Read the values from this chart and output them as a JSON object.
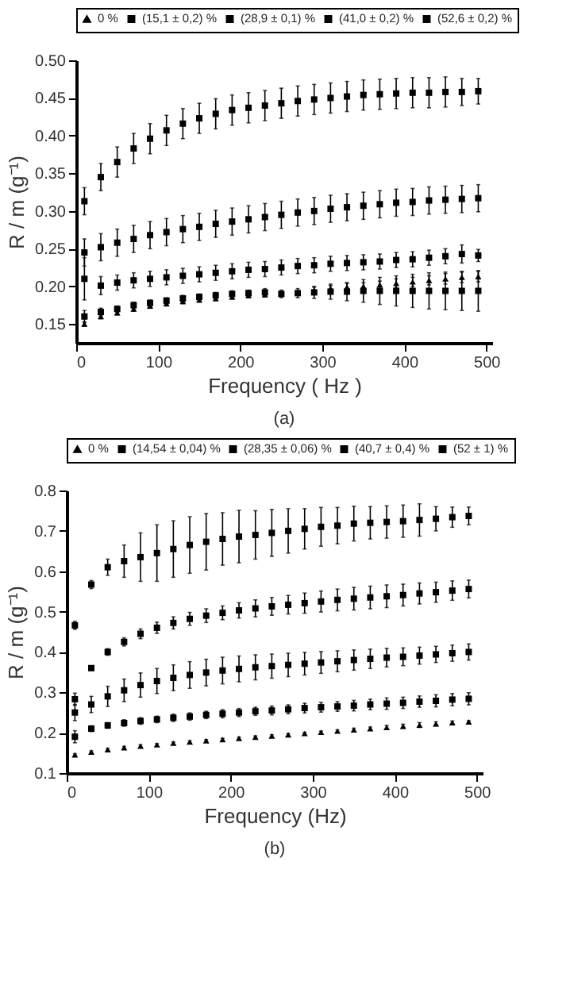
{
  "chart_data": [
    {
      "type": "scatter",
      "xlabel": "Frequency ( Hz )",
      "ylabel": "R / m (g⁻¹)",
      "annotations": [
        "(a)"
      ],
      "legend": "top",
      "grid": false,
      "xlim": [
        0,
        507
      ],
      "xticks": [
        0,
        100,
        200,
        300,
        400,
        500
      ],
      "ylim": [
        0.125,
        0.5
      ],
      "yticks": [
        {
          "value": 0.15,
          "label": "0.15"
        },
        {
          "value": 0.2,
          "label": "0.20"
        },
        {
          "value": 0.25,
          "label": "0.25"
        },
        {
          "value": 0.3,
          "label": "0.30"
        },
        {
          "value": 0.35,
          "label": "0.35"
        },
        {
          "value": 0.4,
          "label": "0.40"
        },
        {
          "value": 0.45,
          "label": "0.45"
        },
        {
          "value": 0.5,
          "label": "0.50"
        }
      ],
      "x": [
        10,
        30,
        50,
        70,
        90,
        110,
        130,
        150,
        170,
        190,
        210,
        230,
        250,
        270,
        290,
        310,
        330,
        350,
        370,
        390,
        410,
        430,
        450,
        470,
        490
      ],
      "series": [
        {
          "name": "0 %",
          "color": "#000000",
          "marker": "triangle",
          "values": [
            0.15,
            0.16,
            0.165,
            0.17,
            0.174,
            0.177,
            0.18,
            0.182,
            0.184,
            0.186,
            0.188,
            0.189,
            null,
            null,
            0.195,
            0.197,
            0.199,
            0.2,
            0.202,
            0.204,
            0.206,
            0.208,
            0.21,
            0.212,
            0.213
          ],
          "errors": [
            0.003,
            0.003,
            0.003,
            0.003,
            0.003,
            0.003,
            0.003,
            0.003,
            0.003,
            0.003,
            0.003,
            0.003,
            null,
            null,
            0.004,
            0.004,
            0.005,
            0.005,
            0.005,
            0.006,
            0.006,
            0.006,
            0.007,
            0.007,
            0.007
          ]
        },
        {
          "name": "(15,1 ± 0,2) %",
          "color": "#000000",
          "marker": "square",
          "values": [
            0.16,
            0.166,
            0.17,
            0.175,
            0.178,
            0.181,
            0.184,
            0.186,
            0.188,
            0.19,
            0.191,
            0.192,
            0.19,
            0.191,
            0.192,
            0.193,
            0.193,
            0.194,
            0.194,
            0.194,
            0.194,
            0.194,
            0.194,
            0.194,
            0.194
          ],
          "errors": [
            0.008,
            0.005,
            0.004,
            0.004,
            0.004,
            0.004,
            0.004,
            0.004,
            0.004,
            0.004,
            0.004,
            0.005,
            0.005,
            0.006,
            0.008,
            0.01,
            0.012,
            0.015,
            0.018,
            0.02,
            0.022,
            0.024,
            0.025,
            0.026,
            0.027
          ]
        },
        {
          "name": "(28,9 ± 0,1) %",
          "color": "#000000",
          "marker": "square",
          "values": [
            0.21,
            0.201,
            0.205,
            0.208,
            0.21,
            0.212,
            0.214,
            0.216,
            0.218,
            0.22,
            0.222,
            0.223,
            0.225,
            0.227,
            0.228,
            0.23,
            0.231,
            0.232,
            0.233,
            0.235,
            0.236,
            0.238,
            0.24,
            0.243,
            0.241
          ],
          "errors": [
            0.028,
            0.012,
            0.01,
            0.01,
            0.01,
            0.01,
            0.01,
            0.01,
            0.01,
            0.01,
            0.01,
            0.01,
            0.01,
            0.01,
            0.01,
            0.01,
            0.01,
            0.01,
            0.01,
            0.01,
            0.01,
            0.01,
            0.01,
            0.012,
            0.008
          ]
        },
        {
          "name": "(41,0 ± 0,2) %",
          "color": "#000000",
          "marker": "square",
          "values": [
            0.245,
            0.252,
            0.258,
            0.263,
            0.268,
            0.272,
            0.276,
            0.279,
            0.283,
            0.286,
            0.289,
            0.292,
            0.295,
            0.298,
            0.3,
            0.303,
            0.305,
            0.307,
            0.309,
            0.311,
            0.312,
            0.314,
            0.315,
            0.316,
            0.317
          ],
          "errors": [
            0.018,
            0.018,
            0.018,
            0.018,
            0.018,
            0.018,
            0.018,
            0.018,
            0.018,
            0.018,
            0.018,
            0.018,
            0.018,
            0.018,
            0.018,
            0.018,
            0.018,
            0.018,
            0.018,
            0.018,
            0.018,
            0.018,
            0.018,
            0.018,
            0.018
          ]
        },
        {
          "name": "(52,6 ± 0,2) %",
          "color": "#000000",
          "marker": "square",
          "values": [
            0.313,
            0.345,
            0.365,
            0.383,
            0.396,
            0.407,
            0.416,
            0.423,
            0.429,
            0.434,
            0.437,
            0.44,
            0.443,
            0.446,
            0.448,
            0.45,
            0.452,
            0.454,
            0.455,
            0.456,
            0.457,
            0.457,
            0.458,
            0.458,
            0.459
          ],
          "errors": [
            0.018,
            0.018,
            0.02,
            0.02,
            0.02,
            0.02,
            0.02,
            0.02,
            0.02,
            0.02,
            0.02,
            0.02,
            0.02,
            0.02,
            0.02,
            0.02,
            0.02,
            0.02,
            0.02,
            0.02,
            0.02,
            0.02,
            0.02,
            0.018,
            0.017
          ]
        }
      ]
    },
    {
      "type": "scatter",
      "xlabel": "Frequency (Hz)",
      "ylabel": "R / m (g⁻¹)",
      "annotations": [
        "(b)"
      ],
      "legend": "top",
      "grid": false,
      "xlim": [
        0,
        507
      ],
      "xticks": [
        0,
        100,
        200,
        300,
        400,
        500
      ],
      "ylim": [
        0.1,
        0.8
      ],
      "yticks": [
        0.1,
        0.2,
        0.3,
        0.4,
        0.5,
        0.6,
        0.7,
        0.8
      ],
      "x": [
        10,
        30,
        50,
        70,
        90,
        110,
        130,
        150,
        170,
        190,
        210,
        230,
        250,
        270,
        290,
        310,
        330,
        350,
        370,
        390,
        410,
        430,
        450,
        470,
        490
      ],
      "series": [
        {
          "name": "0 %",
          "color": "#000000",
          "marker": "triangle",
          "values": [
            0.145,
            0.152,
            0.158,
            0.163,
            0.167,
            0.17,
            0.174,
            0.177,
            0.18,
            0.183,
            0.186,
            0.189,
            0.192,
            0.195,
            0.198,
            0.201,
            0.204,
            0.207,
            0.21,
            0.213,
            0.216,
            0.219,
            0.222,
            0.225,
            0.227
          ],
          "errors": [
            0.003,
            0.003,
            0.003,
            0.003,
            0.003,
            0.003,
            0.003,
            0.003,
            0.003,
            0.003,
            0.003,
            0.003,
            0.003,
            0.003,
            0.003,
            0.003,
            0.003,
            0.004,
            0.004,
            0.005,
            0.005,
            0.006,
            0.005,
            0.004,
            0.003
          ]
        },
        {
          "name": "(14,54 ± 0,04) %",
          "color": "#000000",
          "marker": "square",
          "values": [
            0.19,
            0.21,
            0.218,
            0.224,
            0.229,
            0.233,
            0.237,
            0.24,
            0.244,
            0.247,
            0.25,
            0.253,
            0.255,
            0.258,
            0.261,
            0.263,
            0.265,
            0.267,
            0.27,
            0.272,
            0.274,
            0.277,
            0.279,
            0.282,
            0.284
          ],
          "errors": [
            0.015,
            0.007,
            0.007,
            0.008,
            0.008,
            0.008,
            0.009,
            0.009,
            0.009,
            0.01,
            0.01,
            0.01,
            0.011,
            0.011,
            0.012,
            0.012,
            0.012,
            0.013,
            0.013,
            0.014,
            0.014,
            0.014,
            0.015,
            0.015,
            0.015
          ]
        },
        {
          "name": "(28,35 ± 0,06) %",
          "color": "#000000",
          "marker": "square",
          "values": [
            0.25,
            0.27,
            0.29,
            0.305,
            0.318,
            0.328,
            0.336,
            0.343,
            0.349,
            0.354,
            0.358,
            0.362,
            0.365,
            0.368,
            0.371,
            0.374,
            0.377,
            0.38,
            0.383,
            0.386,
            0.388,
            0.391,
            0.394,
            0.397,
            0.4
          ],
          "errors": [
            0.02,
            0.02,
            0.025,
            0.028,
            0.03,
            0.031,
            0.032,
            0.033,
            0.033,
            0.033,
            0.032,
            0.031,
            0.03,
            0.029,
            0.028,
            0.027,
            0.026,
            0.025,
            0.024,
            0.023,
            0.022,
            0.021,
            0.02,
            0.02,
            0.02
          ]
        },
        {
          "name": "(40,7 ± 0,4) %",
          "color": "#000000",
          "marker": "square",
          "values": [
            0.283,
            0.36,
            0.4,
            0.425,
            0.445,
            0.46,
            0.472,
            0.482,
            0.49,
            0.497,
            0.503,
            0.508,
            0.513,
            0.517,
            0.521,
            0.525,
            0.529,
            0.532,
            0.535,
            0.538,
            0.541,
            0.545,
            0.548,
            0.552,
            0.556
          ],
          "errors": [
            0.015,
            0.005,
            0.008,
            0.01,
            0.012,
            0.014,
            0.015,
            0.016,
            0.017,
            0.017,
            0.019,
            0.021,
            0.022,
            0.023,
            0.025,
            0.026,
            0.027,
            0.028,
            0.028,
            0.028,
            0.027,
            0.026,
            0.025,
            0.024,
            0.022
          ]
        },
        {
          "name": "(52 ± 1) %",
          "color": "#000000",
          "marker": "square",
          "values": [
            0.466,
            0.567,
            0.61,
            0.625,
            0.635,
            0.645,
            0.655,
            0.665,
            0.673,
            0.68,
            0.686,
            0.69,
            0.695,
            0.7,
            0.705,
            0.71,
            0.713,
            0.718,
            0.72,
            0.722,
            0.724,
            0.727,
            0.73,
            0.734,
            0.737
          ],
          "errors": [
            0.01,
            0.01,
            0.02,
            0.04,
            0.06,
            0.07,
            0.07,
            0.07,
            0.07,
            0.065,
            0.065,
            0.06,
            0.058,
            0.055,
            0.05,
            0.048,
            0.045,
            0.043,
            0.04,
            0.04,
            0.04,
            0.04,
            0.03,
            0.025,
            0.022
          ]
        }
      ]
    }
  ]
}
